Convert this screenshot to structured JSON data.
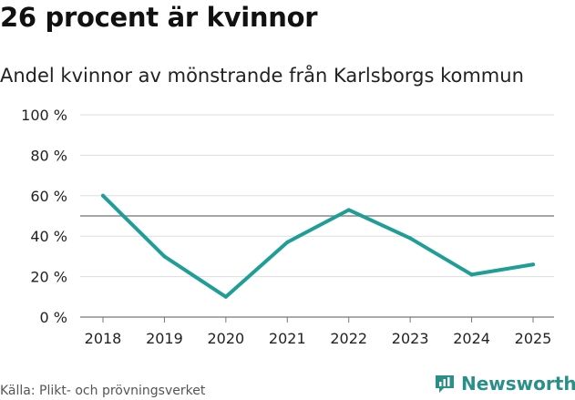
{
  "header": {
    "title": "26 procent är kvinnor",
    "subtitle": "Andel kvinnor av mönstrande från Karlsborgs kommun"
  },
  "footer": {
    "source": "Källa: Plikt- och prövningsverket",
    "brand": "Newsworthy"
  },
  "colors": {
    "line": "#1f9e97",
    "reference": "#888888",
    "grid": "#dddddd",
    "brand": "#2a8f89"
  },
  "icons": {
    "brand": "newsworthy-logo-icon"
  },
  "chart_data": {
    "type": "line",
    "categories": [
      "2018",
      "2019",
      "2020",
      "2021",
      "2022",
      "2023",
      "2024",
      "2025"
    ],
    "series": [
      {
        "values": [
          60,
          30,
          10,
          37,
          53,
          39,
          21,
          26
        ]
      }
    ],
    "reference_line": 50,
    "ylim": [
      0,
      100
    ],
    "yticks": [
      0,
      20,
      40,
      60,
      80,
      100
    ],
    "ytick_labels": [
      "0 %",
      "20 %",
      "40 %",
      "60 %",
      "80 %",
      "100 %"
    ],
    "grid": true,
    "legend": "none",
    "xlabel": "",
    "ylabel": ""
  }
}
